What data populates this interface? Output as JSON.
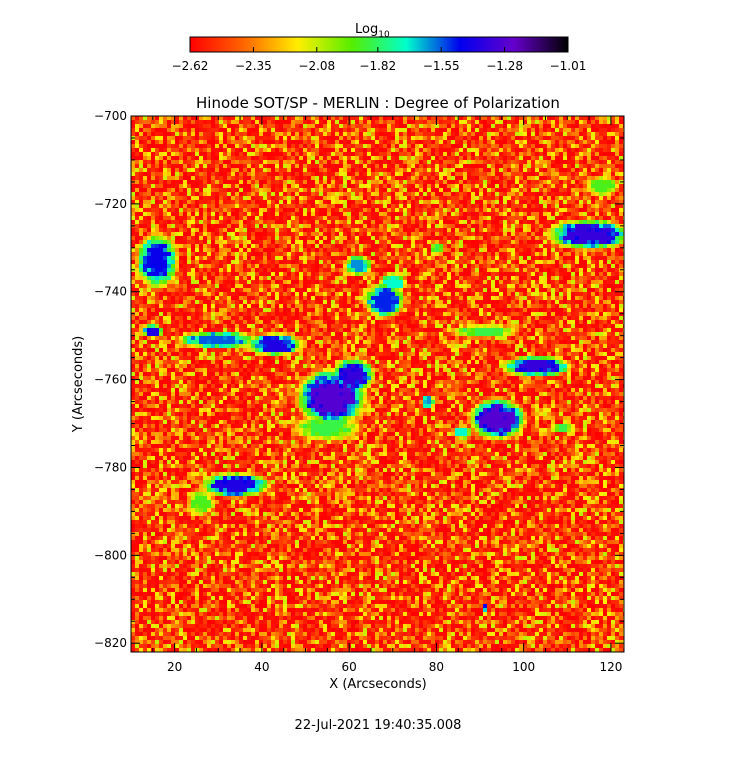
{
  "chart_data": {
    "type": "heatmap",
    "title": "Hinode SOT/SP - MERLIN : Degree of Polarization",
    "xlabel": "X (Arcseconds)",
    "ylabel": "Y (Arcseconds)",
    "xlim": [
      10,
      123
    ],
    "ylim": [
      -822,
      -700
    ],
    "x_ticks": [
      20,
      40,
      60,
      80,
      100,
      120
    ],
    "x_tick_labels": [
      "20",
      "40",
      "60",
      "80",
      "100",
      "120"
    ],
    "y_ticks": [
      -700,
      -720,
      -740,
      -760,
      -780,
      -800,
      -820
    ],
    "y_tick_labels": [
      "-700",
      "-720",
      "-740",
      "-760",
      "-780",
      "-800",
      "-820"
    ],
    "colorbar": {
      "label": "Log",
      "label_sub": "10",
      "range": [
        -2.62,
        -1.01
      ],
      "ticks": [
        -2.62,
        -2.35,
        -2.08,
        -1.82,
        -1.55,
        -1.28,
        -1.01
      ],
      "tick_labels": [
        "-2.62",
        "-2.35",
        "-2.08",
        "-1.82",
        "-1.55",
        "-1.28",
        "-1.01"
      ],
      "colors": [
        "#ff0000",
        "#ff6600",
        "#ffee00",
        "#55ee00",
        "#00ffcc",
        "#0000ee",
        "#6600cc",
        "#000000"
      ]
    },
    "features": [
      {
        "x": 56,
        "y": -764,
        "rx": 5,
        "ry": 4,
        "level": -1.28
      },
      {
        "x": 61,
        "y": -759,
        "rx": 3,
        "ry": 2.5,
        "level": -1.35
      },
      {
        "x": 94,
        "y": -769,
        "rx": 4,
        "ry": 3,
        "level": -1.28
      },
      {
        "x": 103,
        "y": -757,
        "rx": 5,
        "ry": 1.5,
        "level": -1.35
      },
      {
        "x": 34,
        "y": -784,
        "rx": 5,
        "ry": 1.8,
        "level": -1.4
      },
      {
        "x": 30,
        "y": -751,
        "rx": 6,
        "ry": 1.3,
        "level": -1.55
      },
      {
        "x": 43,
        "y": -752,
        "rx": 4,
        "ry": 1.6,
        "level": -1.4
      },
      {
        "x": 16,
        "y": -733,
        "rx": 3,
        "ry": 4,
        "level": -1.45
      },
      {
        "x": 15,
        "y": -749,
        "rx": 1.5,
        "ry": 1,
        "level": -1.4
      },
      {
        "x": 68,
        "y": -742,
        "rx": 3,
        "ry": 2.5,
        "level": -1.5
      },
      {
        "x": 62,
        "y": -734,
        "rx": 2,
        "ry": 1.5,
        "level": -1.6
      },
      {
        "x": 115,
        "y": -727,
        "rx": 6,
        "ry": 2.2,
        "level": -1.35
      },
      {
        "x": 91,
        "y": -749,
        "rx": 5,
        "ry": 1,
        "level": -1.85
      },
      {
        "x": 55,
        "y": -771,
        "rx": 5,
        "ry": 2,
        "level": -1.85
      },
      {
        "x": 86,
        "y": -772,
        "rx": 1.5,
        "ry": 1,
        "level": -1.7
      },
      {
        "x": 118,
        "y": -716,
        "rx": 2.5,
        "ry": 1.5,
        "level": -1.9
      },
      {
        "x": 26,
        "y": -788,
        "rx": 2,
        "ry": 2,
        "level": -1.9
      },
      {
        "x": 70,
        "y": -738,
        "rx": 2,
        "ry": 1.5,
        "level": -1.7
      },
      {
        "x": 80,
        "y": -730,
        "rx": 1,
        "ry": 1,
        "level": -1.85
      },
      {
        "x": 109,
        "y": -771,
        "rx": 2,
        "ry": 0.7,
        "level": -1.85
      },
      {
        "x": 78,
        "y": -765,
        "rx": 1,
        "ry": 1,
        "level": -1.6
      },
      {
        "x": 91,
        "y": -812,
        "rx": 0.5,
        "ry": 0.5,
        "level": -1.4
      }
    ]
  },
  "footer": {
    "timestamp": "22-Jul-2021 19:40:35.008"
  }
}
